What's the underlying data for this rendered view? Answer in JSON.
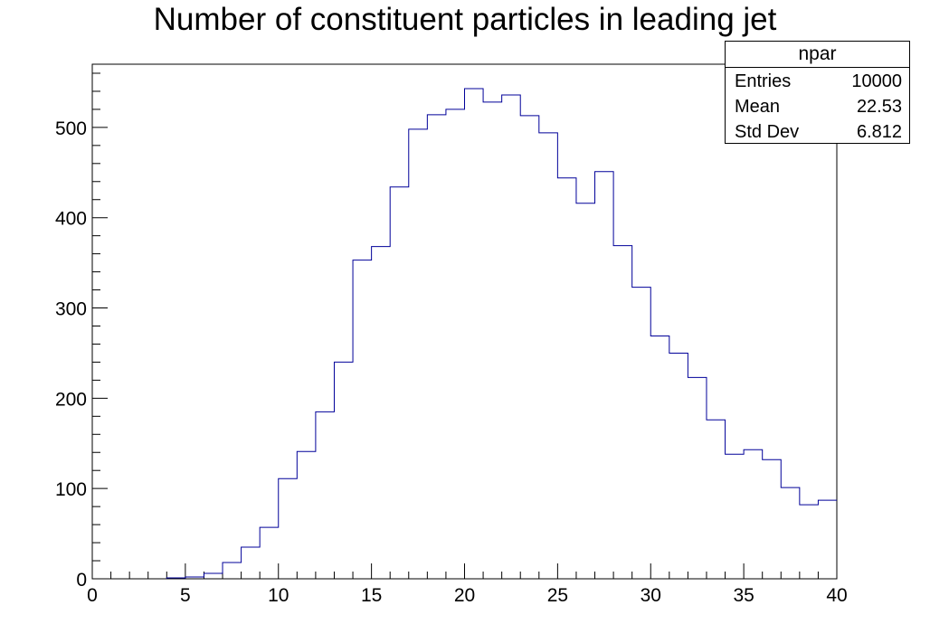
{
  "chart_data": {
    "type": "histogram",
    "title": "Number of constituent particles in leading jet",
    "xlabel": "",
    "ylabel": "",
    "xlim": [
      0,
      40
    ],
    "ylim": [
      0,
      570
    ],
    "grid": false,
    "bin_edges": [
      0,
      1,
      2,
      3,
      4,
      5,
      6,
      7,
      8,
      9,
      10,
      11,
      12,
      13,
      14,
      15,
      16,
      17,
      18,
      19,
      20,
      21,
      22,
      23,
      24,
      25,
      26,
      27,
      28,
      29,
      30,
      31,
      32,
      33,
      34,
      35,
      36,
      37,
      38,
      39,
      40
    ],
    "series": [
      {
        "name": "npar",
        "color": "#000099",
        "values": [
          0,
          0,
          0,
          0,
          1,
          2,
          6,
          18,
          35,
          57,
          111,
          141,
          185,
          240,
          353,
          368,
          434,
          498,
          514,
          520,
          543,
          528,
          536,
          513,
          494,
          444,
          416,
          451,
          369,
          323,
          269,
          250,
          223,
          176,
          138,
          143,
          132,
          101,
          82,
          87
        ]
      }
    ],
    "x_ticks": [
      "0",
      "5",
      "10",
      "15",
      "20",
      "25",
      "30",
      "35",
      "40"
    ],
    "y_ticks": [
      "0",
      "100",
      "200",
      "300",
      "400",
      "500"
    ]
  },
  "stats": {
    "name": "npar",
    "rows": [
      {
        "label": "Entries",
        "value": "10000"
      },
      {
        "label": "Mean",
        "value": "22.53"
      },
      {
        "label": "Std Dev",
        "value": "6.812"
      }
    ]
  }
}
